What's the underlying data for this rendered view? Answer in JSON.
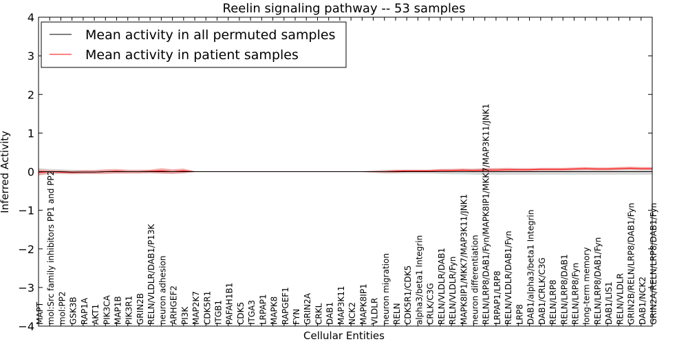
{
  "chart_data": {
    "type": "line",
    "title": "Reelin signaling pathway -- 53 samples",
    "xlabel": "Cellular Entities",
    "ylabel": "Inferred Activity",
    "ylim": [
      -4,
      4
    ],
    "yticks": [
      -4,
      -3,
      -2,
      -1,
      0,
      1,
      2,
      3,
      4
    ],
    "grid": false,
    "legend_position": "top-left",
    "categories": [
      "MAPT",
      "mol:Src family inhibitors PP1 and PP2",
      "mol:PP2",
      "GSK3B",
      "RAP1A",
      "AKT1",
      "PIK3CA",
      "MAP1B",
      "PIK3R1",
      "GRIN2B",
      "RELN/VLDLR/DAB1/P13K",
      "neuron adhesion",
      "ARHGEF2",
      "PI3K",
      "MAP2K7",
      "CDK5R1",
      "ITGB1",
      "PAFAH1B1",
      "CDK5",
      "ITGA3",
      "LRPAP1",
      "MAPK8",
      "RAPGEF1",
      "FYN",
      "GRIN2A",
      "CRKL",
      "DAB1",
      "MAP3K11",
      "NCK2",
      "MAPK8IP1",
      "VLDLR",
      "neuron migration",
      "RELN",
      "CDK5R1/CDK5",
      "alpha3/beta1 Integrin",
      "CRLK/C3G",
      "RELN/VLDLR/DAB1",
      "RELN/VLDLR/Fyn",
      "MAPK8IP1/MKK7/MAP3K11/JNK1",
      "neuron differentiation",
      "RELN/LRP8/DAB1/Fyn/MAPK8IP1/MKK7/MAP3K11/JNK1",
      "LRPAP1/LRP8",
      "RELN/VLDLR/DAB1/Fyn",
      "LRP8",
      "DAB1/alpha3/beta1 Integrin",
      "DAB1/CRLK/C3G",
      "RELN/LRP8",
      "RELN/LRP8/DAB1",
      "RELN/LRP8/Fyn",
      "long-term memory",
      "RELN/LRP8/DAB1/Fyn",
      "DAB1/LIS1",
      "RELN/VLDLR",
      "GRIN2B/RELN/LRP8/DAB1/Fyn",
      "DAB1/NCK2",
      "GRIN2A/RELN/LRP8/DAB1/Fyn"
    ],
    "series": [
      {
        "name": "Mean activity in all permuted samples",
        "color": "#000000",
        "band_color": "#bbbbbb",
        "values": [
          0,
          0,
          0,
          -0.01,
          -0.01,
          -0.01,
          0,
          0,
          0,
          0,
          0,
          0,
          0,
          0,
          0,
          0,
          0,
          0,
          0,
          0,
          0,
          0,
          0,
          0,
          0,
          0,
          0,
          0,
          0,
          0,
          0,
          0,
          0,
          0,
          0,
          0,
          0,
          0,
          0,
          0,
          0,
          0,
          0,
          0,
          0,
          0,
          0,
          0,
          0,
          0,
          0,
          0,
          0,
          0,
          0,
          0
        ],
        "spread": [
          0.09,
          0.07,
          0.06,
          0.06,
          0.05,
          0.05,
          0.04,
          0.04,
          0.04,
          0.04,
          0.05,
          0.05,
          0.05,
          0.05,
          0.01,
          0.01,
          0.01,
          0.01,
          0.01,
          0.01,
          0.01,
          0.01,
          0.01,
          0.01,
          0.01,
          0.01,
          0.01,
          0.01,
          0.01,
          0.01,
          0.03,
          0.05,
          0.05,
          0.05,
          0.05,
          0.05,
          0.06,
          0.07,
          0.07,
          0.08,
          0.08,
          0.08,
          0.08,
          0.08,
          0.08,
          0.08,
          0.08,
          0.08,
          0.08,
          0.08,
          0.08,
          0.08,
          0.08,
          0.08,
          0.08,
          0.08
        ]
      },
      {
        "name": "Mean activity in patient samples",
        "color": "#ff0000",
        "band_color": "#f08080",
        "values": [
          -0.02,
          0,
          -0.01,
          -0.02,
          -0.01,
          -0.01,
          0,
          0.01,
          0,
          0,
          0.01,
          0.02,
          0,
          0.02,
          0,
          0,
          0,
          0,
          0,
          0,
          0,
          0,
          0,
          0,
          0,
          0,
          0,
          0,
          0,
          0,
          0,
          0,
          0.01,
          0.02,
          0.02,
          0.02,
          0.03,
          0.03,
          0.04,
          0.03,
          0.04,
          0.04,
          0.05,
          0.05,
          0.05,
          0.06,
          0.06,
          0.06,
          0.07,
          0.08,
          0.07,
          0.07,
          0.08,
          0.09,
          0.08,
          0.08
        ],
        "spread": [
          0.08,
          0.04,
          0.04,
          0.04,
          0.05,
          0.05,
          0.06,
          0.06,
          0.05,
          0.05,
          0.04,
          0.07,
          0.06,
          0.06,
          0.01,
          0.01,
          0.01,
          0.01,
          0.01,
          0.01,
          0.01,
          0.01,
          0.01,
          0.01,
          0.01,
          0.01,
          0.01,
          0.01,
          0.01,
          0.01,
          0.02,
          0.03,
          0.04,
          0.03,
          0.03,
          0.03,
          0.04,
          0.04,
          0.04,
          0.04,
          0.05,
          0.05,
          0.05,
          0.04,
          0.04,
          0.04,
          0.04,
          0.04,
          0.04,
          0.04,
          0.04,
          0.04,
          0.04,
          0.04,
          0.04,
          0.04
        ]
      }
    ]
  }
}
